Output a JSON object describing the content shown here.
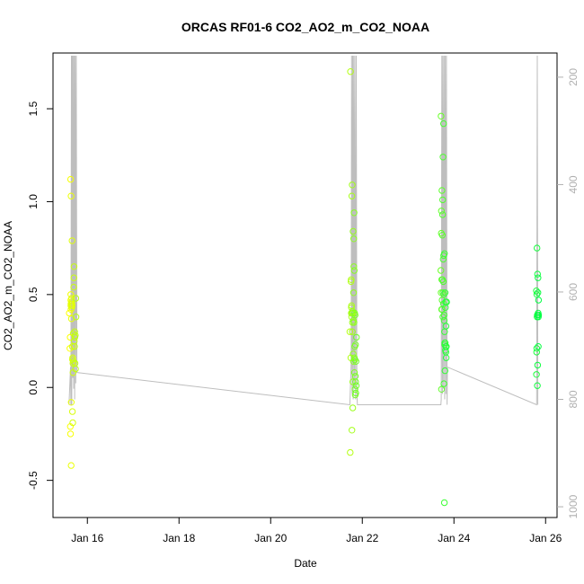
{
  "chart_data": {
    "type": "scatter",
    "title": "ORCAS RF01-6 CO2_AO2_m_CO2_NOAA",
    "xlabel": "Date",
    "ylabel": "CO2_AO2_m_CO2_NOAA",
    "xlim": [
      "2016-01-15T06:00",
      "2016-01-26T06:00"
    ],
    "ylim": [
      -0.7,
      1.8
    ],
    "x_ticks": [
      {
        "label": "Jan 16",
        "date": "2016-01-16"
      },
      {
        "label": "Jan 18",
        "date": "2016-01-18"
      },
      {
        "label": "Jan 20",
        "date": "2016-01-20"
      },
      {
        "label": "Jan 22",
        "date": "2016-01-22"
      },
      {
        "label": "Jan 24",
        "date": "2016-01-24"
      },
      {
        "label": "Jan 26",
        "date": "2016-01-26"
      }
    ],
    "y_ticks": [
      "-0.5",
      "0.0",
      "0.5",
      "1.0",
      "1.5"
    ],
    "y_tick_values": [
      -0.5,
      0.0,
      0.5,
      1.0,
      1.5
    ],
    "y2_axis": {
      "reversed": true,
      "range": [
        155,
        1020
      ],
      "ticks": [
        "200",
        "400",
        "600",
        "800",
        "1000"
      ],
      "tick_values": [
        200,
        400,
        600,
        800,
        1000
      ],
      "color": "#b0b0b0"
    },
    "grid": false,
    "point_color_scale": [
      "#ffff00",
      "#00ff44"
    ],
    "line_color": "#bebebe",
    "altitude_trace": [
      [
        "2016-01-15T14:24",
        810
      ],
      [
        "2016-01-15T15:10",
        740
      ],
      [
        "2016-01-15T15:22",
        810
      ],
      [
        "2016-01-15T15:38",
        160
      ],
      [
        "2016-01-15T15:50",
        810
      ],
      [
        "2016-01-15T16:05",
        160
      ],
      [
        "2016-01-15T16:20",
        760
      ],
      [
        "2016-01-15T16:32",
        160
      ],
      [
        "2016-01-15T16:48",
        780
      ],
      [
        "2016-01-15T17:05",
        160
      ],
      [
        "2016-01-15T17:20",
        800
      ],
      [
        "2016-01-15T17:36",
        160
      ],
      [
        "2016-01-15T17:55",
        770
      ],
      [
        "2016-01-15T18:10",
        160
      ],
      [
        "2016-01-15T18:30",
        750
      ],
      [
        "2016-01-15T18:36",
        750
      ],
      [
        "2016-01-21T17:30",
        810
      ],
      [
        "2016-01-21T18:10",
        730
      ],
      [
        "2016-01-21T18:24",
        160
      ],
      [
        "2016-01-21T18:40",
        790
      ],
      [
        "2016-01-21T18:56",
        160
      ],
      [
        "2016-01-21T19:12",
        800
      ],
      [
        "2016-01-21T19:30",
        160
      ],
      [
        "2016-01-21T19:50",
        780
      ],
      [
        "2016-01-21T20:08",
        160
      ],
      [
        "2016-01-21T20:30",
        800
      ],
      [
        "2016-01-21T20:48",
        160
      ],
      [
        "2016-01-21T21:10",
        790
      ],
      [
        "2016-01-21T21:25",
        810
      ],
      [
        "2016-01-23T17:10",
        810
      ],
      [
        "2016-01-23T17:20",
        800
      ],
      [
        "2016-01-23T17:40",
        160
      ],
      [
        "2016-01-23T17:58",
        790
      ],
      [
        "2016-01-23T18:15",
        160
      ],
      [
        "2016-01-23T18:34",
        780
      ],
      [
        "2016-01-23T18:52",
        160
      ],
      [
        "2016-01-23T19:10",
        800
      ],
      [
        "2016-01-23T19:28",
        160
      ],
      [
        "2016-01-23T19:48",
        790
      ],
      [
        "2016-01-23T20:05",
        160
      ],
      [
        "2016-01-23T20:24",
        810
      ],
      [
        "2016-01-23T20:36",
        740
      ],
      [
        "2016-01-25T19:20",
        810
      ],
      [
        "2016-01-25T19:40",
        160
      ],
      [
        "2016-01-25T19:56",
        810
      ]
    ],
    "series": [
      {
        "points": [
          [
            "2016-01-15T14:30",
            0.4
          ],
          [
            "2016-01-15T14:50",
            0.21
          ],
          [
            "2016-01-15T15:00",
            0.27
          ],
          [
            "2016-01-15T15:05",
            -0.21
          ],
          [
            "2016-01-15T15:10",
            -0.25
          ],
          [
            "2016-01-15T15:14",
            1.12
          ],
          [
            "2016-01-15T15:18",
            0.47
          ],
          [
            "2016-01-15T15:20",
            0.5
          ],
          [
            "2016-01-15T15:22",
            0.44
          ],
          [
            "2016-01-15T15:24",
            0.42
          ],
          [
            "2016-01-15T15:26",
            0.45
          ],
          [
            "2016-01-15T15:28",
            1.03
          ],
          [
            "2016-01-15T15:30",
            -0.42
          ],
          [
            "2016-01-15T15:34",
            -0.08
          ],
          [
            "2016-01-15T15:38",
            0.37
          ],
          [
            "2016-01-15T15:42",
            0.46
          ],
          [
            "2016-01-15T15:46",
            0.48
          ],
          [
            "2016-01-15T15:50",
            0.43
          ],
          [
            "2016-01-15T15:54",
            0.45
          ],
          [
            "2016-01-15T15:58",
            0.79
          ],
          [
            "2016-01-15T16:02",
            0.44
          ],
          [
            "2016-01-15T16:06",
            0.22
          ],
          [
            "2016-01-15T16:10",
            -0.13
          ],
          [
            "2016-01-15T16:14",
            0.15
          ],
          [
            "2016-01-15T16:18",
            0.16
          ],
          [
            "2016-01-15T16:22",
            -0.19
          ],
          [
            "2016-01-15T16:26",
            0.13
          ],
          [
            "2016-01-15T16:30",
            0.08
          ],
          [
            "2016-01-15T16:36",
            0.29
          ],
          [
            "2016-01-15T16:42",
            0.14
          ],
          [
            "2016-01-15T16:48",
            0.54
          ],
          [
            "2016-01-15T16:54",
            0.59
          ],
          [
            "2016-01-15T17:00",
            0.65
          ],
          [
            "2016-01-15T17:08",
            0.25
          ],
          [
            "2016-01-15T17:14",
            0.22
          ],
          [
            "2016-01-15T17:20",
            0.3
          ],
          [
            "2016-01-15T17:26",
            0.27
          ],
          [
            "2016-01-15T17:32",
            0.13
          ],
          [
            "2016-01-15T17:40",
            0.28
          ],
          [
            "2016-01-15T17:48",
            0.1
          ],
          [
            "2016-01-15T17:56",
            0.48
          ],
          [
            "2016-01-15T18:04",
            0.38
          ]
        ]
      },
      {
        "points": [
          [
            "2016-01-21T17:30",
            0.3
          ],
          [
            "2016-01-21T17:40",
            -0.35
          ],
          [
            "2016-01-21T17:50",
            1.7
          ],
          [
            "2016-01-21T18:00",
            0.16
          ],
          [
            "2016-01-21T18:06",
            0.57
          ],
          [
            "2016-01-21T18:10",
            0.58
          ],
          [
            "2016-01-21T18:14",
            0.4
          ],
          [
            "2016-01-21T18:18",
            0.43
          ],
          [
            "2016-01-21T18:22",
            0.44
          ],
          [
            "2016-01-21T18:26",
            0.38
          ],
          [
            "2016-01-21T18:30",
            1.03
          ],
          [
            "2016-01-21T18:34",
            -0.23
          ],
          [
            "2016-01-21T18:38",
            0.4
          ],
          [
            "2016-01-21T18:42",
            1.09
          ],
          [
            "2016-01-21T18:46",
            0.3
          ],
          [
            "2016-01-21T18:50",
            0.35
          ],
          [
            "2016-01-21T18:54",
            0.41
          ],
          [
            "2016-01-21T18:58",
            -0.11
          ],
          [
            "2016-01-21T19:02",
            0.03
          ],
          [
            "2016-01-21T19:06",
            0.4
          ],
          [
            "2016-01-21T19:10",
            0.84
          ],
          [
            "2016-01-21T19:14",
            0.18
          ],
          [
            "2016-01-21T19:18",
            0.36
          ],
          [
            "2016-01-21T19:22",
            0.14
          ],
          [
            "2016-01-21T19:26",
            0.51
          ],
          [
            "2016-01-21T19:30",
            0.8
          ],
          [
            "2016-01-21T19:34",
            0.65
          ],
          [
            "2016-01-21T19:38",
            0.35
          ],
          [
            "2016-01-21T19:42",
            0.94
          ],
          [
            "2016-01-21T19:46",
            0.63
          ],
          [
            "2016-01-21T19:50",
            0.16
          ],
          [
            "2016-01-21T19:54",
            0.08
          ],
          [
            "2016-01-21T19:58",
            0.4
          ],
          [
            "2016-01-21T20:02",
            0.22
          ],
          [
            "2016-01-21T20:06",
            0.15
          ],
          [
            "2016-01-21T20:10",
            -0.01
          ],
          [
            "2016-01-21T20:14",
            0.39
          ],
          [
            "2016-01-21T20:18",
            -0.04
          ],
          [
            "2016-01-21T20:22",
            0.06
          ],
          [
            "2016-01-21T20:26",
            0.23
          ],
          [
            "2016-01-21T20:30",
            0.03
          ],
          [
            "2016-01-21T20:36",
            -0.03
          ],
          [
            "2016-01-21T20:42",
            0.14
          ],
          [
            "2016-01-21T20:48",
            0.01
          ],
          [
            "2016-01-21T20:54",
            0.27
          ]
        ]
      },
      {
        "points": [
          [
            "2016-01-23T17:10",
            0.63
          ],
          [
            "2016-01-23T17:14",
            1.46
          ],
          [
            "2016-01-23T17:18",
            0.51
          ],
          [
            "2016-01-23T17:22",
            0.83
          ],
          [
            "2016-01-23T17:26",
            0.95
          ],
          [
            "2016-01-23T17:30",
            -0.01
          ],
          [
            "2016-01-23T17:34",
            0.42
          ],
          [
            "2016-01-23T17:38",
            0.58
          ],
          [
            "2016-01-23T17:42",
            1.06
          ],
          [
            "2016-01-23T17:46",
            0.42
          ],
          [
            "2016-01-23T17:50",
            0.47
          ],
          [
            "2016-01-23T17:54",
            0.82
          ],
          [
            "2016-01-23T17:58",
            0.58
          ],
          [
            "2016-01-23T18:02",
            0.93
          ],
          [
            "2016-01-23T18:06",
            1.01
          ],
          [
            "2016-01-23T18:10",
            0.38
          ],
          [
            "2016-01-23T18:14",
            0.51
          ],
          [
            "2016-01-23T18:18",
            1.24
          ],
          [
            "2016-01-23T18:22",
            0.69
          ],
          [
            "2016-01-23T18:26",
            0.57
          ],
          [
            "2016-01-23T18:30",
            0.45
          ],
          [
            "2016-01-23T18:34",
            1.42
          ],
          [
            "2016-01-23T18:38",
            0.71
          ],
          [
            "2016-01-23T18:42",
            0.5
          ],
          [
            "2016-01-23T18:46",
            0.02
          ],
          [
            "2016-01-23T18:50",
            0.39
          ],
          [
            "2016-01-23T18:54",
            0.36
          ],
          [
            "2016-01-23T18:58",
            -0.62
          ],
          [
            "2016-01-23T19:02",
            0.72
          ],
          [
            "2016-01-23T19:06",
            0.3
          ],
          [
            "2016-01-23T19:10",
            0.23
          ],
          [
            "2016-01-23T19:14",
            0.24
          ],
          [
            "2016-01-23T19:18",
            0.09
          ],
          [
            "2016-01-23T19:22",
            0.51
          ],
          [
            "2016-01-23T19:26",
            0.24
          ],
          [
            "2016-01-23T19:30",
            0.43
          ],
          [
            "2016-01-23T19:34",
            0.2
          ],
          [
            "2016-01-23T19:38",
            0.46
          ],
          [
            "2016-01-23T19:42",
            0.22
          ],
          [
            "2016-01-23T19:46",
            0.19
          ],
          [
            "2016-01-23T19:50",
            0.33
          ],
          [
            "2016-01-23T19:56",
            0.16
          ],
          [
            "2016-01-23T20:02",
            0.22
          ],
          [
            "2016-01-23T20:10",
            0.46
          ]
        ]
      },
      {
        "points": [
          [
            "2016-01-25T19:10",
            0.52
          ],
          [
            "2016-01-25T19:14",
            0.07
          ],
          [
            "2016-01-25T19:18",
            0.19
          ],
          [
            "2016-01-25T19:22",
            0.21
          ],
          [
            "2016-01-25T19:26",
            0.5
          ],
          [
            "2016-01-25T19:30",
            0.75
          ],
          [
            "2016-01-25T19:34",
            0.38
          ],
          [
            "2016-01-25T19:38",
            0.39
          ],
          [
            "2016-01-25T19:42",
            0.01
          ],
          [
            "2016-01-25T19:46",
            0.61
          ],
          [
            "2016-01-25T19:50",
            0.12
          ],
          [
            "2016-01-25T19:54",
            0.39
          ],
          [
            "2016-01-25T19:58",
            0.51
          ],
          [
            "2016-01-25T20:02",
            0.59
          ],
          [
            "2016-01-25T20:06",
            0.4
          ],
          [
            "2016-01-25T20:10",
            0.22
          ],
          [
            "2016-01-25T20:14",
            0.38
          ],
          [
            "2016-01-25T20:18",
            0.47
          ],
          [
            "2016-01-25T20:22",
            0.39
          ]
        ]
      }
    ]
  }
}
